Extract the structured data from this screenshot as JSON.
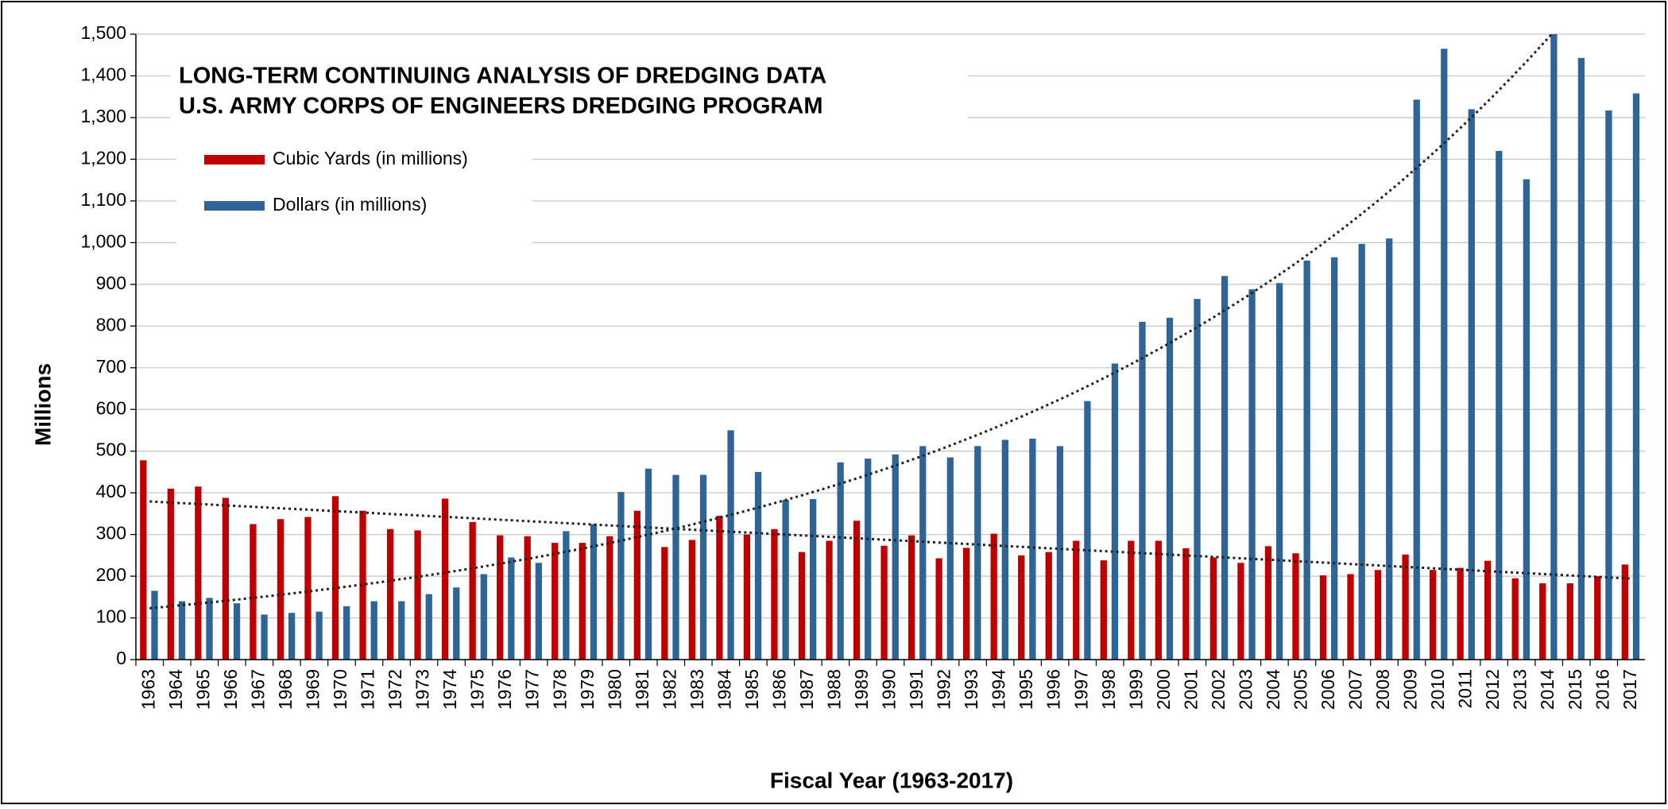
{
  "chart_data": {
    "type": "bar",
    "title": [
      "LONG-TERM CONTINUING ANALYSIS OF DREDGING DATA",
      "U.S. ARMY CORPS OF ENGINEERS DREDGING PROGRAM"
    ],
    "y_label": "Millions",
    "x_label": "Fiscal Year (1963-2017)",
    "categories": [
      "1963",
      "1964",
      "1965",
      "1966",
      "1967",
      "1968",
      "1969",
      "1970",
      "1971",
      "1972",
      "1973",
      "1974",
      "1975",
      "1976",
      "1977",
      "1978",
      "1979",
      "1980",
      "1981",
      "1982",
      "1983",
      "1984",
      "1985",
      "1986",
      "1987",
      "1988",
      "1989",
      "1990",
      "1991",
      "1992",
      "1993",
      "1994",
      "1995",
      "1996",
      "1997",
      "1998",
      "1999",
      "2000",
      "2001",
      "2002",
      "2003",
      "2004",
      "2005",
      "2006",
      "2007",
      "2008",
      "2009",
      "2010",
      "2011",
      "2012",
      "2013",
      "2014",
      "2015",
      "2016",
      "2017"
    ],
    "series": [
      {
        "name": "Cubic Yards (in millions)",
        "color": "#c00000",
        "trendline": "linear",
        "values": [
          478,
          410,
          415,
          388,
          325,
          337,
          342,
          392,
          357,
          313,
          310,
          386,
          330,
          298,
          296,
          280,
          280,
          296,
          357,
          270,
          287,
          345,
          300,
          313,
          258,
          285,
          333,
          273,
          298,
          243,
          268,
          302,
          250,
          258,
          285,
          238,
          285,
          285,
          267,
          245,
          232,
          272,
          255,
          202,
          205,
          215,
          252,
          215,
          220,
          237,
          195,
          183,
          183,
          200,
          228
        ]
      },
      {
        "name": "Dollars (in millions)",
        "color": "#2e6496",
        "trendline": "exponential",
        "values": [
          165,
          140,
          148,
          135,
          108,
          112,
          115,
          128,
          140,
          140,
          157,
          173,
          205,
          245,
          232,
          308,
          325,
          402,
          458,
          443,
          443,
          550,
          450,
          383,
          385,
          473,
          482,
          492,
          512,
          485,
          512,
          527,
          530,
          512,
          620,
          710,
          810,
          820,
          865,
          920,
          888,
          903,
          957,
          965,
          997,
          1010,
          1343,
          1465,
          1320,
          1220,
          1152,
          1500,
          1443,
          1317,
          1358
        ]
      }
    ],
    "ylim": [
      0,
      1500
    ],
    "yticks": [
      0,
      100,
      200,
      300,
      400,
      500,
      600,
      700,
      800,
      900,
      {
        "value": 1000,
        "label": "1,000"
      },
      {
        "value": 1100,
        "label": "1,100"
      },
      {
        "value": 1200,
        "label": "1,200"
      },
      {
        "value": 1300,
        "label": "1,300"
      },
      {
        "value": 1400,
        "label": "1,400"
      },
      {
        "value": 1500,
        "label": "1,500"
      }
    ],
    "grid": true,
    "legend": "upper left"
  }
}
